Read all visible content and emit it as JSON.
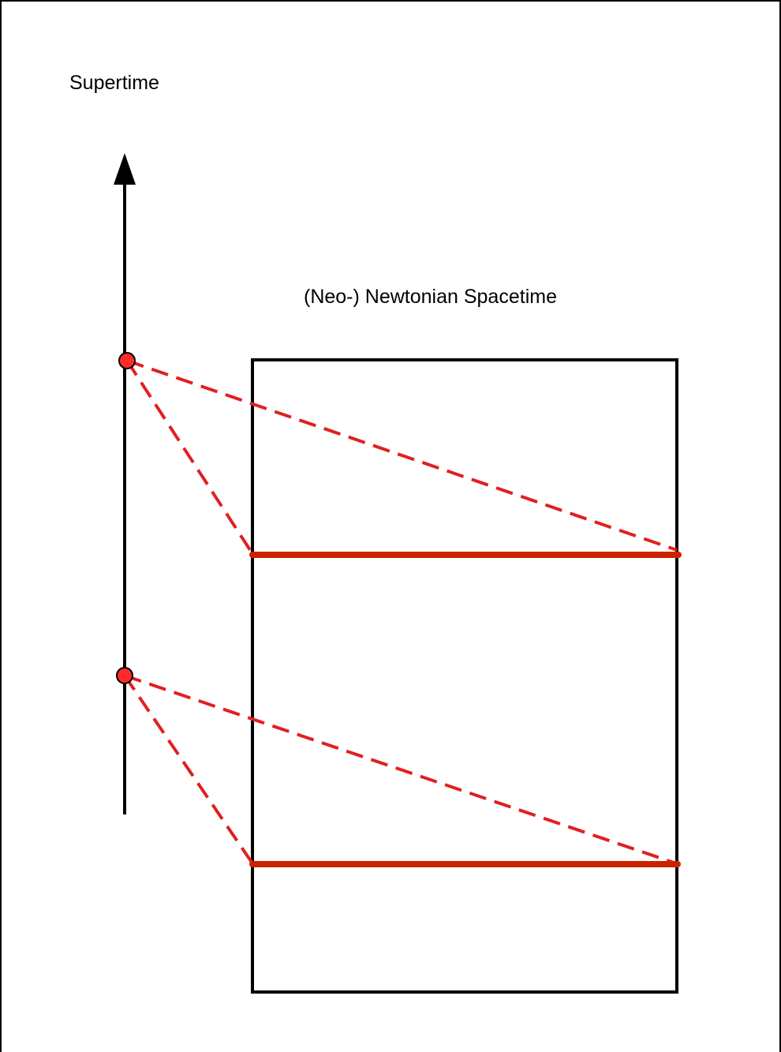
{
  "diagram": {
    "supertime_label": "Supertime",
    "spacetime_label": "(Neo-) Newtonian Spacetime",
    "colors": {
      "frame": "#000000",
      "axis": "#000000",
      "slice": "#cc2200",
      "projection": "#e02020",
      "point_fill": "#ff2a2a"
    }
  }
}
